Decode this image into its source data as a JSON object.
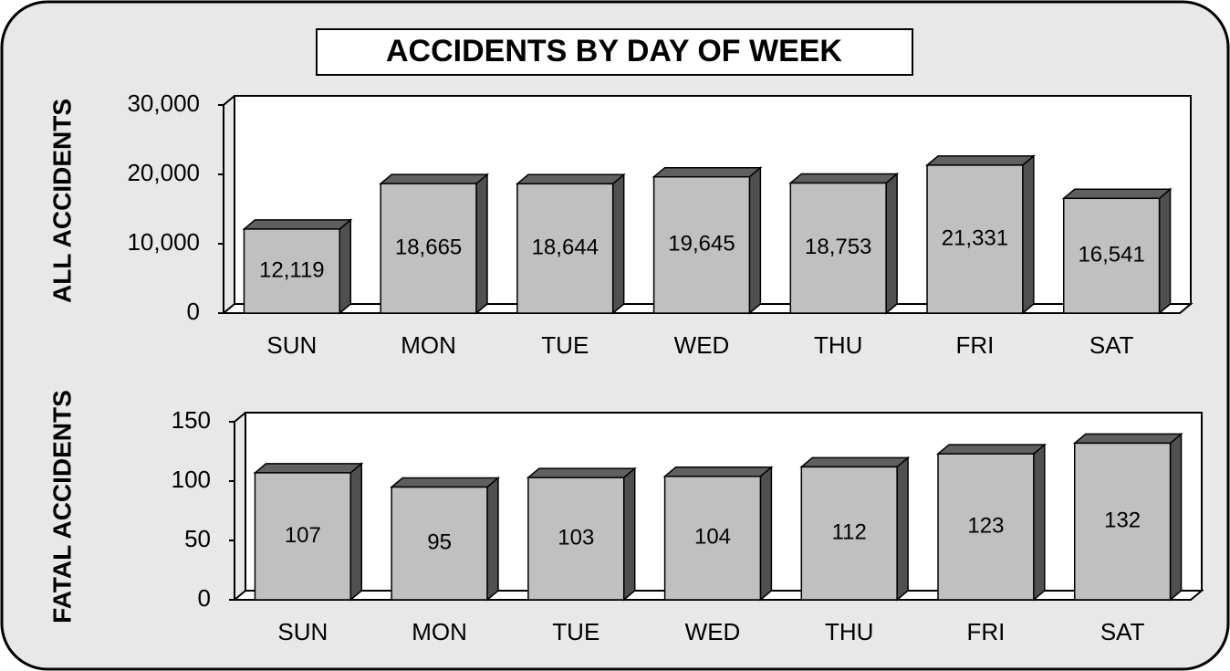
{
  "title": "ACCIDENTS BY DAY OF WEEK",
  "chart_data": [
    {
      "type": "bar",
      "ylabel": "ALL ACCIDENTS",
      "categories": [
        "SUN",
        "MON",
        "TUE",
        "WED",
        "THU",
        "FRI",
        "SAT"
      ],
      "values": [
        12119,
        18665,
        18644,
        19645,
        18753,
        21331,
        16541
      ],
      "value_labels": [
        "12,119",
        "18,665",
        "18,644",
        "19,645",
        "18,753",
        "21,331",
        "16,541"
      ],
      "color": "#c0c0c0",
      "ylim": [
        0,
        30000
      ],
      "yticks": [
        0,
        {
          "value": 10000,
          "label": "10,000"
        },
        {
          "value": 20000,
          "label": "20,000"
        },
        {
          "value": 30000,
          "label": "30,000"
        }
      ]
    },
    {
      "type": "bar",
      "ylabel": "FATAL ACCIDENTS",
      "categories": [
        "SUN",
        "MON",
        "TUE",
        "WED",
        "THU",
        "FRI",
        "SAT"
      ],
      "values": [
        107,
        95,
        103,
        104,
        112,
        123,
        132
      ],
      "color": "#c0c0c0",
      "ylim": [
        0,
        150
      ],
      "yticks": [
        0,
        50,
        100,
        150
      ]
    }
  ]
}
